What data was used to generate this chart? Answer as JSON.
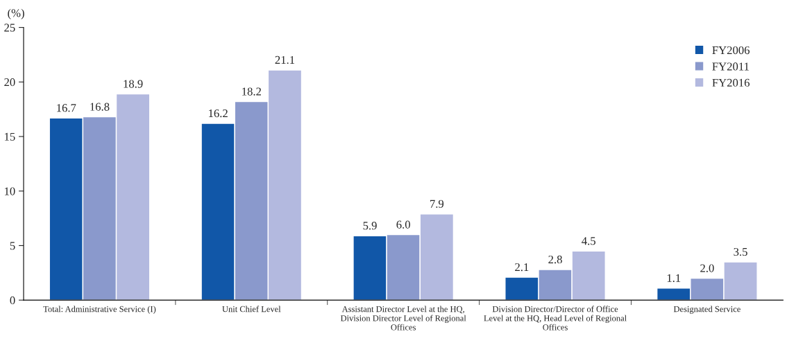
{
  "chart_data": {
    "type": "bar",
    "ylabel": "(%)",
    "categories": [
      "Total: Administrative Service (I)",
      "Unit Chief Level",
      "Assistant Director Level at the HQ, Division Director Level of Regional Offices",
      "Division Director/Director of Office Level at the HQ, Head Level of Regional Offices",
      "Designated Service"
    ],
    "series": [
      {
        "name": "FY2006",
        "color": "#1157a8",
        "values": [
          16.7,
          16.2,
          5.9,
          2.1,
          1.1
        ],
        "value_labels": [
          "16.7",
          "16.2",
          "5.9",
          "2.1",
          "1.1"
        ]
      },
      {
        "name": "FY2011",
        "color": "#8a99cc",
        "values": [
          16.8,
          18.2,
          6.0,
          2.8,
          2.0
        ],
        "value_labels": [
          "16.8",
          "18.2",
          "6.0",
          "2.8",
          "2.0"
        ]
      },
      {
        "name": "FY2016",
        "color": "#b3b9df",
        "values": [
          18.9,
          21.1,
          7.9,
          4.5,
          3.5
        ],
        "value_labels": [
          "18.9",
          "21.1",
          "7.9",
          "4.5",
          "3.5"
        ]
      }
    ],
    "ylim": [
      0,
      25
    ],
    "yticks": [
      0,
      5,
      10,
      15,
      20,
      25
    ],
    "grid": false,
    "legend": "top right"
  }
}
